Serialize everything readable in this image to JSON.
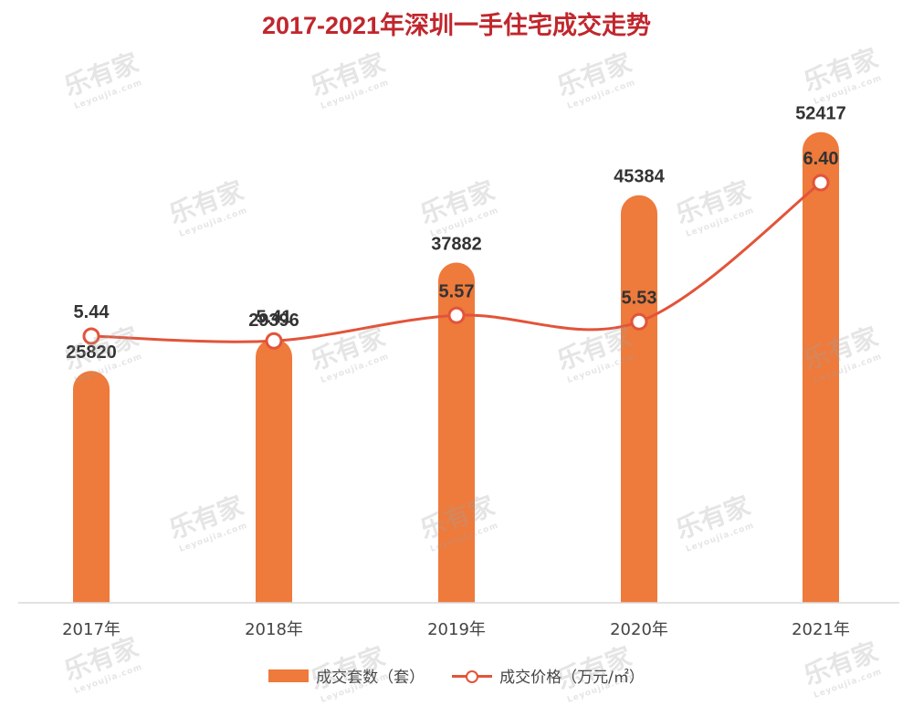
{
  "chart_data": {
    "type": "bar",
    "title": "2017-2021年深圳一手住宅成交走势",
    "categories": [
      "2017年",
      "2018年",
      "2019年",
      "2020年",
      "2021年"
    ],
    "series": [
      {
        "name": "成交套数（套）",
        "type": "bar",
        "values": [
          25820,
          29396,
          37882,
          45384,
          52417
        ],
        "color": "#ee7a3c"
      },
      {
        "name": "成交价格（万元/㎡）",
        "type": "line",
        "values": [
          5.44,
          5.41,
          5.57,
          5.53,
          6.4
        ],
        "color": "#e2543a"
      }
    ],
    "bar_ylim": [
      0,
      60000
    ],
    "line_ylim": [
      3.6,
      6.8
    ],
    "grid": false,
    "legend": "bottom"
  },
  "watermark": {
    "text": "乐有家",
    "subtext": "Leyoujia.com"
  }
}
